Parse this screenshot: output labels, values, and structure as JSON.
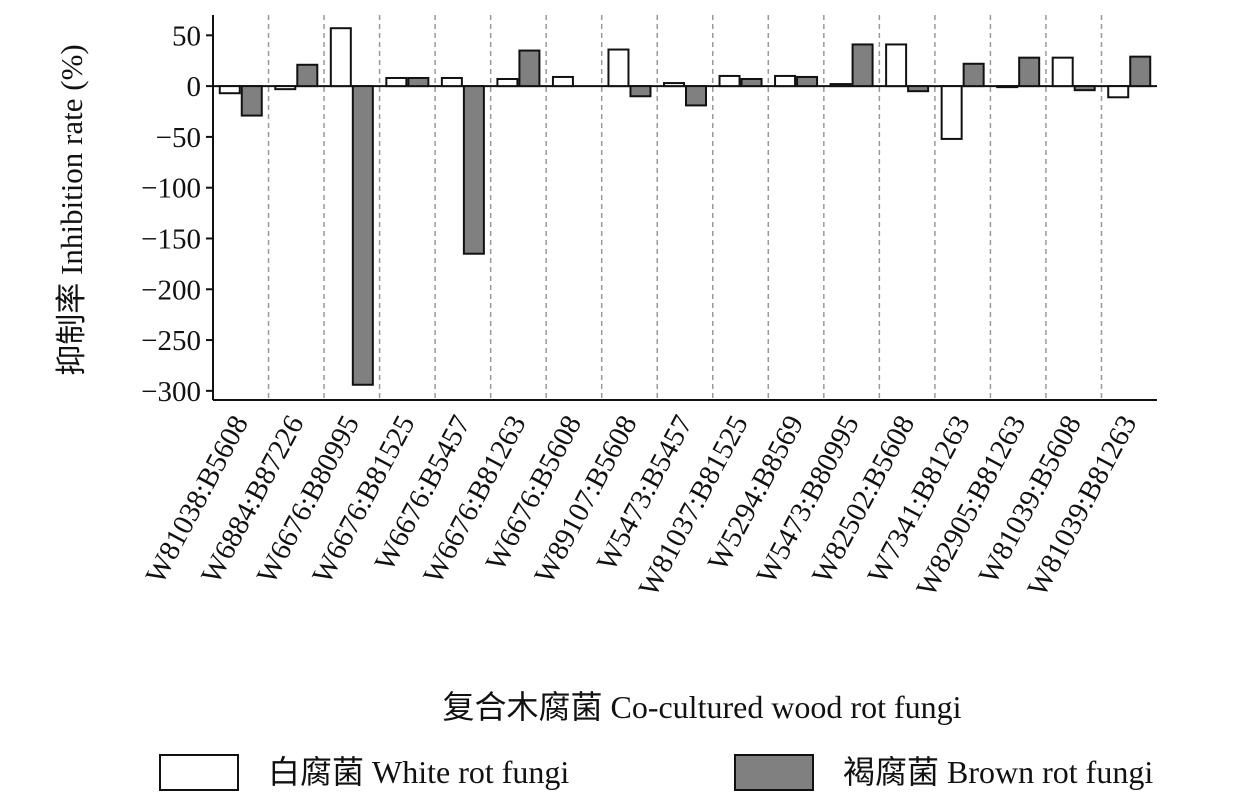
{
  "chart_data": {
    "type": "bar",
    "y_label": "抑制率 Inhibition rate (%)",
    "x_label": "复合木腐菌 Co-cultured wood rot fungi",
    "categories": [
      "W81038:B5608",
      "W6884:B87226",
      "W6676:B80995",
      "W6676:B81525",
      "W6676:B5457",
      "W6676:B81263",
      "W6676:B5608",
      "W89107:B5608",
      "W5473:B5457",
      "W81037:B81525",
      "W5294:B8569",
      "W5473:B80995",
      "W82502:B5608",
      "W7341:B81263",
      "W82905:B81263",
      "W81039:B5608",
      "W81039:B81263"
    ],
    "series": [
      {
        "name": "白腐菌 White rot fungi",
        "color": "#ffffff",
        "values": [
          -7,
          -3,
          57,
          8,
          8,
          7,
          9,
          36,
          3,
          10,
          10,
          2,
          41,
          -52,
          -1,
          28,
          -11
        ]
      },
      {
        "name": "褐腐菌 Brown rot fungi",
        "color": "#808080",
        "values": [
          -29,
          21,
          -294,
          8,
          -165,
          35,
          0,
          -10,
          -19,
          7,
          9,
          41,
          -5,
          22,
          28,
          -4,
          29
        ]
      }
    ],
    "ylim": [
      -309,
      70
    ],
    "yticks": [
      {
        "value": -300,
        "label": "−300"
      },
      {
        "value": -250,
        "label": "−250"
      },
      {
        "value": -200,
        "label": "−200"
      },
      {
        "value": -150,
        "label": "−150"
      },
      {
        "value": -100,
        "label": "−100"
      },
      {
        "value": -50,
        "label": "−50"
      },
      0,
      50
    ],
    "grid": false,
    "legend": "bottom"
  }
}
